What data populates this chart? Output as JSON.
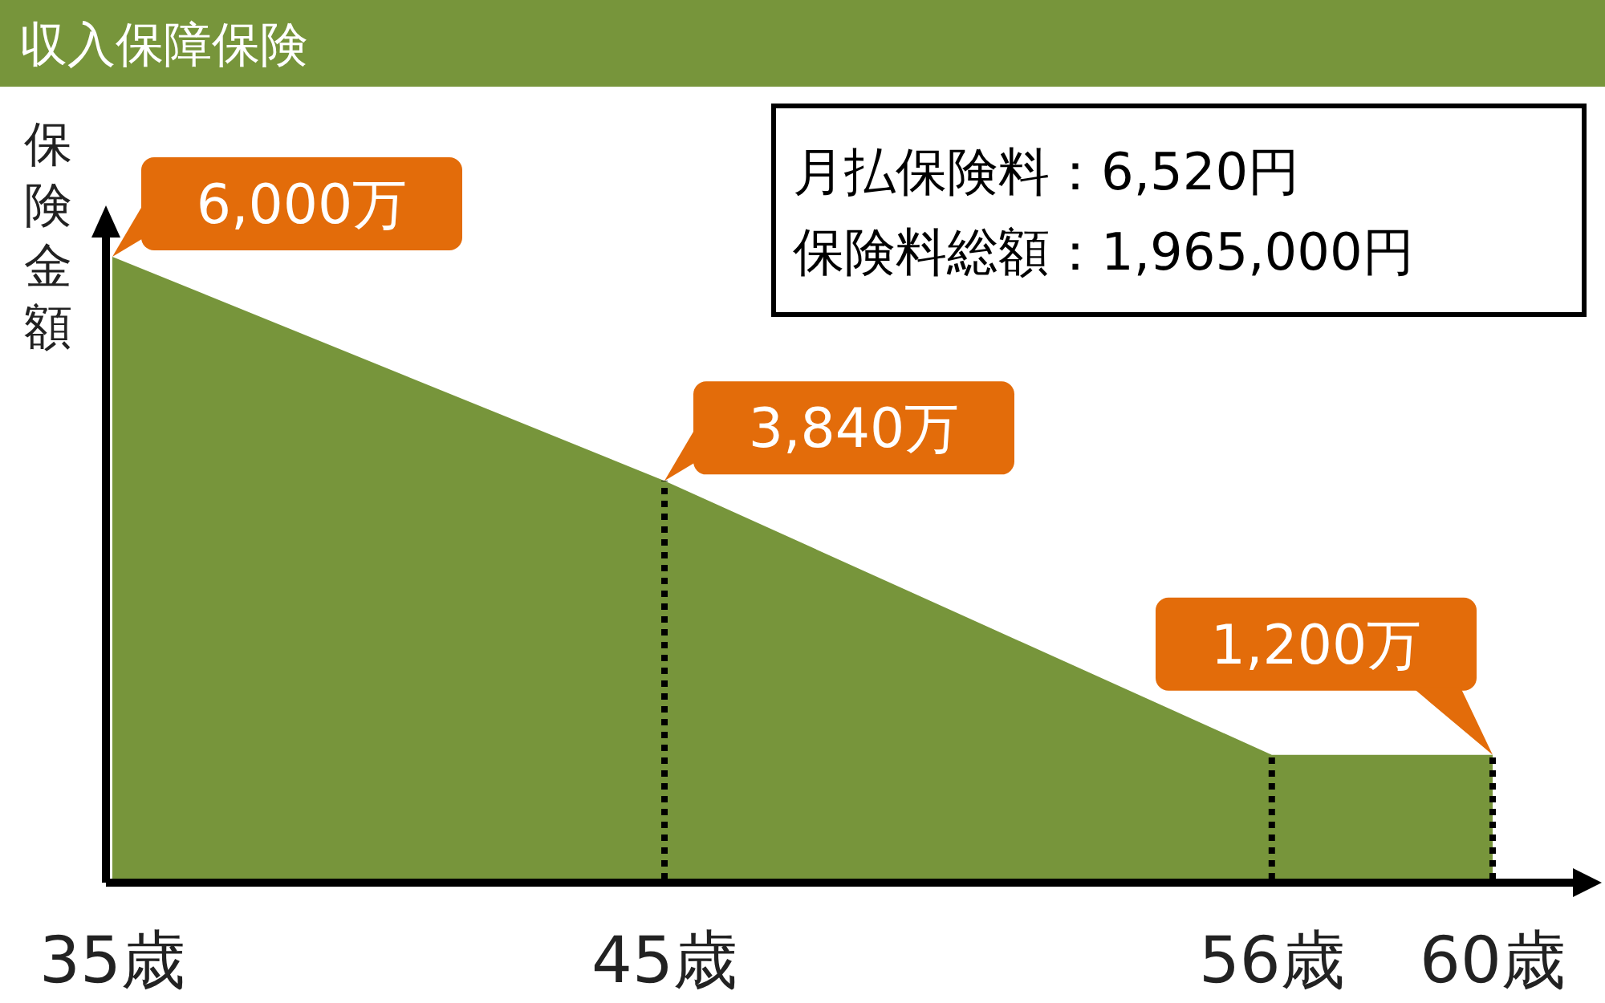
{
  "chart_data": {
    "type": "area",
    "title": "収入保障保険",
    "ylabel": "保険金額",
    "x": [
      35,
      45,
      56,
      60
    ],
    "values": [
      6000,
      3840,
      1200,
      1200
    ],
    "value_labels": [
      "6,000万",
      "3,840万",
      null,
      "1,200万"
    ],
    "color": "#77953b",
    "xlim": [
      35,
      60
    ],
    "xticks": [
      {
        "value": 35,
        "label": "35歳"
      },
      {
        "value": 45,
        "label": "45歳"
      },
      {
        "value": 56,
        "label": "56歳"
      },
      {
        "value": 60,
        "label": "60歳"
      }
    ],
    "tick_labels": "x",
    "ref_lines": [
      {
        "axis": "x",
        "value": 45,
        "color": "#000000",
        "line_style": "dotted"
      },
      {
        "axis": "x",
        "value": 56,
        "color": "#000000",
        "line_style": "dotted"
      },
      {
        "axis": "x",
        "value": 60,
        "color": "#000000",
        "line_style": "dotted"
      }
    ],
    "annotations": [
      "月払保険料：6,520円",
      "保険料総額：1,965,000円"
    ]
  }
}
